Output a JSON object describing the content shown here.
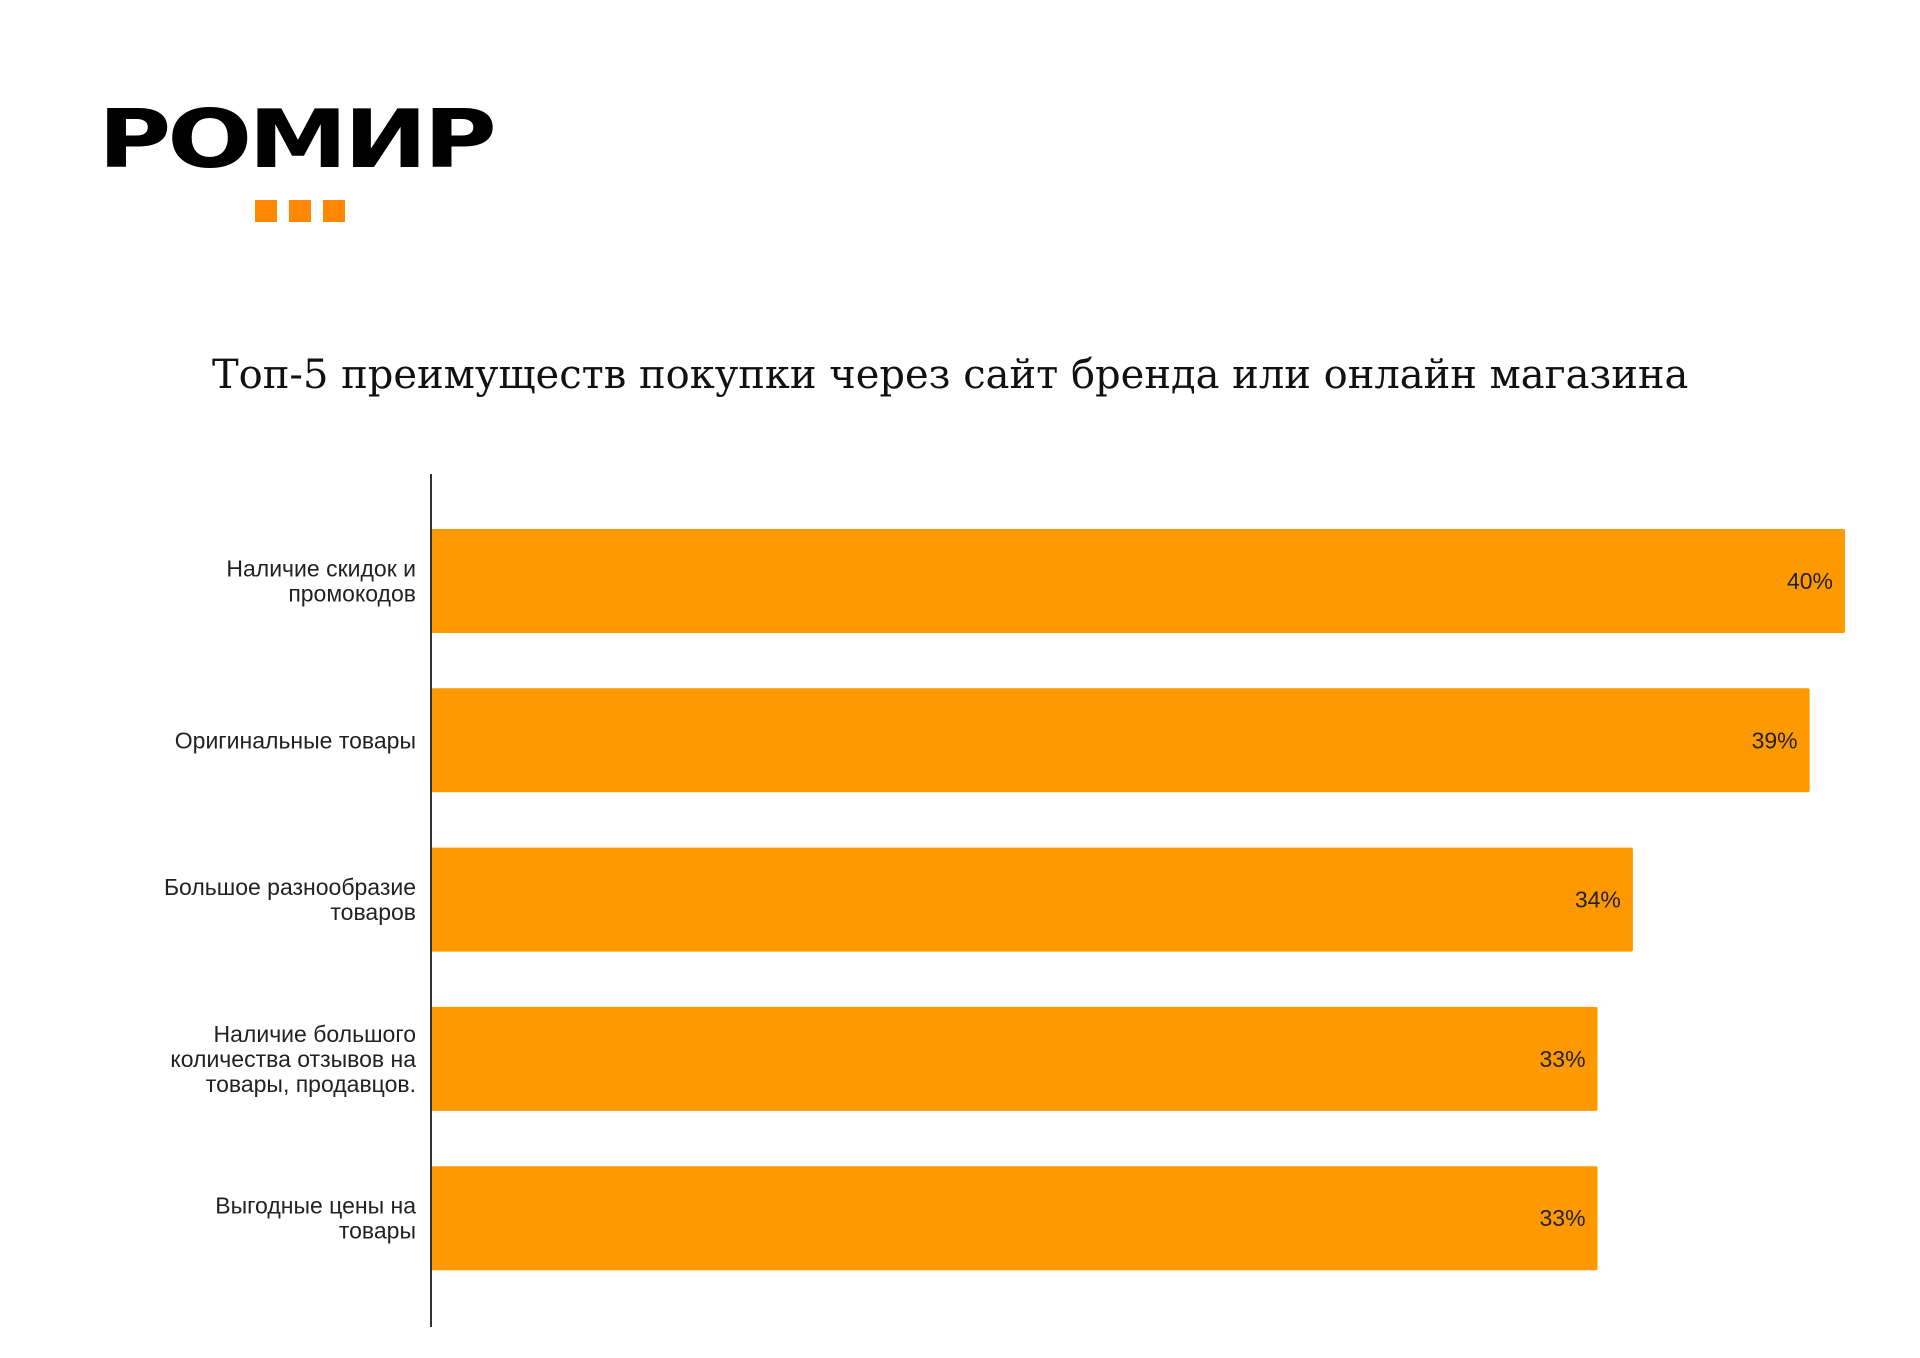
{
  "logo": {
    "text": "РОМИР",
    "accent_color": "#ff8800"
  },
  "chart_data": {
    "type": "bar",
    "orientation": "horizontal",
    "title": "Топ-5 преимуществ покупки через сайт бренда или онлайн магазина",
    "categories": [
      [
        "Наличие скидок и",
        "промокодов"
      ],
      [
        "Оригинальные товары"
      ],
      [
        "Большое разнообразие",
        "товаров"
      ],
      [
        "Наличие большого",
        "количества отзывов на",
        "товары, продавцов."
      ],
      [
        "Выгодные цены на",
        "товары"
      ]
    ],
    "values": [
      40,
      39,
      34,
      33,
      33
    ],
    "data_labels": [
      "40%",
      "39%",
      "34%",
      "33%",
      "33%"
    ],
    "unit": "%",
    "xlim": [
      0,
      40
    ],
    "grid": false,
    "bar_color": "#ff9900"
  }
}
